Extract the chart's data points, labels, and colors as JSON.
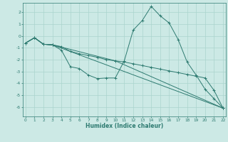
{
  "xlabel": "Humidex (Indice chaleur)",
  "bg_color": "#cce9e5",
  "grid_color": "#aad4ce",
  "line_color": "#2d7a70",
  "lines": [
    {
      "x": [
        0,
        1,
        2,
        3,
        4,
        5,
        6,
        7,
        8,
        9,
        10,
        11,
        12,
        13,
        14,
        15,
        16,
        17,
        18,
        19,
        20,
        21,
        22
      ],
      "y": [
        -0.6,
        -0.15,
        -0.7,
        -0.75,
        -0.9,
        -1.3,
        -1.5,
        -1.65,
        -1.8,
        -2.0,
        -2.1,
        -2.2,
        -2.35,
        -2.5,
        -2.65,
        -2.8,
        -2.95,
        -3.1,
        -3.25,
        -3.4,
        -3.55,
        -4.6,
        -6.1
      ]
    },
    {
      "x": [
        0,
        1,
        2,
        3,
        4,
        5,
        6,
        7,
        8,
        9,
        10,
        11,
        12,
        13,
        14,
        15,
        16,
        17,
        18,
        19,
        20,
        21,
        22
      ],
      "y": [
        -0.6,
        -0.15,
        -0.7,
        -0.75,
        -1.2,
        -2.6,
        -2.75,
        -3.3,
        -3.6,
        -3.55,
        -3.55,
        -2.1,
        0.5,
        1.3,
        2.5,
        1.7,
        1.1,
        -0.3,
        -2.2,
        -3.3,
        -4.5,
        -5.3,
        -6.1
      ]
    },
    {
      "x": [
        0,
        1,
        2,
        3,
        10,
        22
      ],
      "y": [
        -0.6,
        -0.15,
        -0.7,
        -0.75,
        -2.1,
        -6.1
      ]
    },
    {
      "x": [
        0,
        1,
        2,
        3,
        22
      ],
      "y": [
        -0.6,
        -0.15,
        -0.7,
        -0.75,
        -6.1
      ]
    }
  ],
  "xlim": [
    -0.3,
    22.3
  ],
  "ylim": [
    -6.8,
    2.8
  ],
  "yticks": [
    -6,
    -5,
    -4,
    -3,
    -2,
    -1,
    0,
    1,
    2
  ],
  "xticks": [
    0,
    1,
    2,
    3,
    4,
    5,
    6,
    7,
    8,
    9,
    10,
    11,
    12,
    13,
    14,
    15,
    16,
    17,
    18,
    19,
    20,
    21,
    22
  ]
}
